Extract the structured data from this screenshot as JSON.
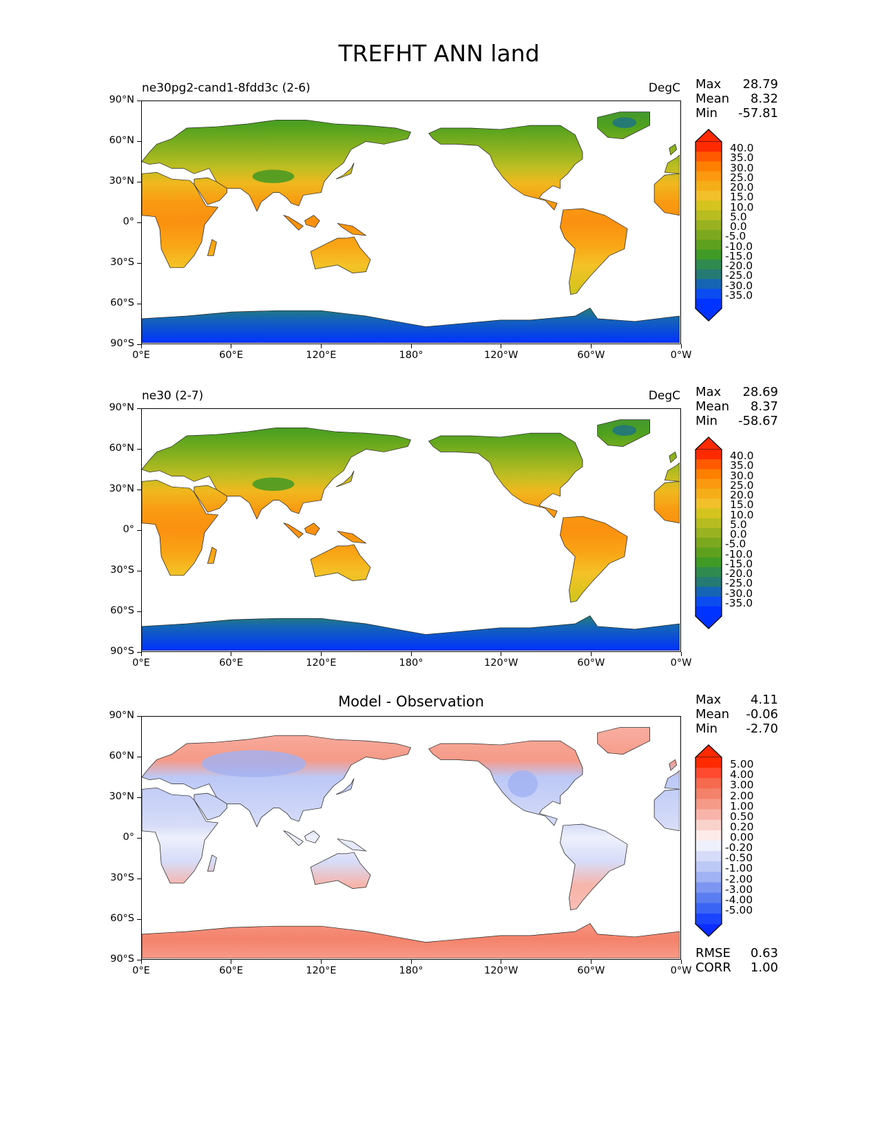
{
  "figure": {
    "title": "TREFHT ANN land",
    "lon_ticks": [
      "0°E",
      "60°E",
      "120°E",
      "180°",
      "120°W",
      "60°W",
      "0°W"
    ],
    "lat_ticks": [
      "90°N",
      "60°N",
      "30°N",
      "0°",
      "30°S",
      "60°S",
      "90°S"
    ]
  },
  "panels": [
    {
      "left_title": "ne30pg2-cand1-8fdd3c (2-6)",
      "center_title": "",
      "right_title": "DegC",
      "stats": [
        {
          "label": "Max",
          "value": "28.79"
        },
        {
          "label": "Mean",
          "value": "8.32"
        },
        {
          "label": "Min",
          "value": "-57.81"
        }
      ],
      "colorbar": {
        "labels": [
          "40.0",
          "35.0",
          "30.0",
          "25.0",
          "20.0",
          "15.0",
          "10.0",
          "5.0",
          "0.0",
          "-5.0",
          "-10.0",
          "-15.0",
          "-20.0",
          "-25.0",
          "-30.0",
          "-35.0"
        ],
        "colors": [
          "#ff2a00",
          "#ff5a00",
          "#ff7f00",
          "#fb9a10",
          "#f5ae18",
          "#f2c02a",
          "#d6c41e",
          "#b7bd20",
          "#98b31f",
          "#7ba81f",
          "#5ea11f",
          "#3f9a26",
          "#2f8a4f",
          "#257a73",
          "#1565b4",
          "#0a4cf0",
          "#0033ff"
        ],
        "min_arrow": "#0033ff",
        "max_arrow": "#ff2a00"
      },
      "extra_stats": []
    },
    {
      "left_title": "ne30 (2-7)",
      "center_title": "",
      "right_title": "DegC",
      "stats": [
        {
          "label": "Max",
          "value": "28.69"
        },
        {
          "label": "Mean",
          "value": "8.37"
        },
        {
          "label": "Min",
          "value": "-58.67"
        }
      ],
      "colorbar": {
        "labels": [
          "40.0",
          "35.0",
          "30.0",
          "25.0",
          "20.0",
          "15.0",
          "10.0",
          "5.0",
          "0.0",
          "-5.0",
          "-10.0",
          "-15.0",
          "-20.0",
          "-25.0",
          "-30.0",
          "-35.0"
        ],
        "colors": [
          "#ff2a00",
          "#ff5a00",
          "#ff7f00",
          "#fb9a10",
          "#f5ae18",
          "#f2c02a",
          "#d6c41e",
          "#b7bd20",
          "#98b31f",
          "#7ba81f",
          "#5ea11f",
          "#3f9a26",
          "#2f8a4f",
          "#257a73",
          "#1565b4",
          "#0a4cf0",
          "#0033ff"
        ],
        "min_arrow": "#0033ff",
        "max_arrow": "#ff2a00"
      },
      "extra_stats": []
    },
    {
      "left_title": "",
      "center_title": "Model - Observation",
      "right_title": "",
      "stats": [
        {
          "label": "Max",
          "value": "4.11"
        },
        {
          "label": "Mean",
          "value": "-0.06"
        },
        {
          "label": "Min",
          "value": "-2.70"
        }
      ],
      "colorbar": {
        "labels": [
          "5.00",
          "4.00",
          "3.00",
          "2.00",
          "1.00",
          "0.50",
          "0.20",
          "0.00",
          "-0.20",
          "-0.50",
          "-1.00",
          "-2.00",
          "-3.00",
          "-4.00",
          "-5.00"
        ],
        "colors": [
          "#ff2a00",
          "#ff4a30",
          "#f66a50",
          "#f4826a",
          "#f69a88",
          "#f8b4a8",
          "#fad2cc",
          "#fcebe8",
          "#eef0fb",
          "#d6dcf8",
          "#bcc8f6",
          "#a0b2f4",
          "#7c96f2",
          "#5a7ef0",
          "#3a64f4",
          "#1a44ff"
        ],
        "min_arrow": "#0a2cff",
        "max_arrow": "#ff2a00"
      },
      "extra_stats": [
        {
          "label": "RMSE",
          "value": "0.63"
        },
        {
          "label": "CORR",
          "value": "1.00"
        }
      ]
    }
  ]
}
